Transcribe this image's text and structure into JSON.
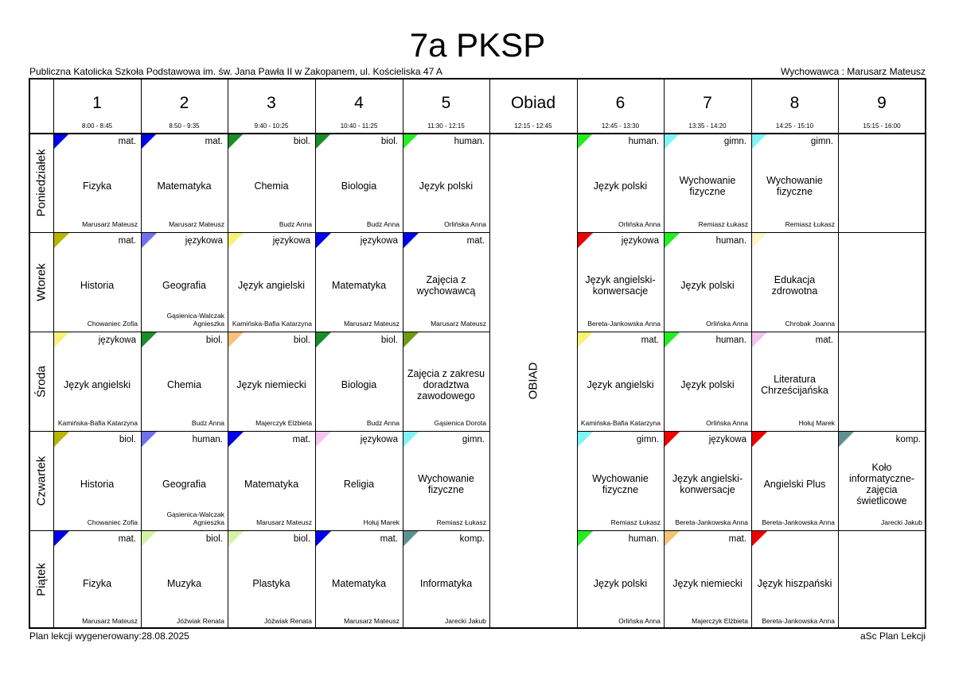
{
  "title": "7a PKSP",
  "school": "Publiczna Katolicka Szkoła Podstawowa im. św. Jana Pawła II w Zakopanem, ul. Kościeliska 47 A",
  "homeroom": "Wychowawca : Marusarz Mateusz",
  "footer_left": "Plan lekcji wygenerowany:28.08.2025",
  "footer_right": "aSc Plan Lekcji",
  "lunch_label": "OBIAD",
  "periods": [
    {
      "label": "1",
      "time": "8:00 - 8:45"
    },
    {
      "label": "2",
      "time": "8:50 - 9:35"
    },
    {
      "label": "3",
      "time": "9:40 - 10:25"
    },
    {
      "label": "4",
      "time": "10:40 - 11:25"
    },
    {
      "label": "5",
      "time": "11:30 - 12:15"
    },
    {
      "label": "Obiad",
      "time": "12:15 - 12:45"
    },
    {
      "label": "6",
      "time": "12:45 - 13:30"
    },
    {
      "label": "7",
      "time": "13:35 - 14:20"
    },
    {
      "label": "8",
      "time": "14:25 - 15:10"
    },
    {
      "label": "9",
      "time": "15:15 - 16:00"
    }
  ],
  "days": [
    {
      "name": "Poniedziałek",
      "lessons": [
        {
          "subject": "Fizyka",
          "group": "mat.",
          "teacher": "Marusarz Mateusz",
          "color": "#0000ee"
        },
        {
          "subject": "Matematyka",
          "group": "mat.",
          "teacher": "Marusarz Mateusz",
          "color": "#0000ee"
        },
        {
          "subject": "Chemia",
          "group": "biol.",
          "teacher": "Budz Anna",
          "color": "#1a8c2a"
        },
        {
          "subject": "Biologia",
          "group": "biol.",
          "teacher": "Budz Anna",
          "color": "#1a8c2a"
        },
        {
          "subject": "Język polski",
          "group": "human.",
          "teacher": "Orlińska Anna",
          "color": "#22ee22"
        },
        null,
        {
          "subject": "Język polski",
          "group": "human.",
          "teacher": "Orlińska Anna",
          "color": "#22ee22"
        },
        {
          "subject": "Wychowanie fizyczne",
          "group": "gimn.",
          "teacher": "Remiasz Łukasz",
          "color": "#7ff3f5"
        },
        {
          "subject": "Wychowanie fizyczne",
          "group": "gimn.",
          "teacher": "Remiasz Łukasz",
          "color": "#7ff3f5"
        },
        null
      ]
    },
    {
      "name": "Wtorek",
      "lessons": [
        {
          "subject": "Historia",
          "group": "mat.",
          "teacher": "Chowaniec Zofia",
          "color": "#b9b400"
        },
        {
          "subject": "Geografia",
          "group": "językowa",
          "teacher": "Gąsienica-Walczak Agnieszka",
          "color": "#7070ee"
        },
        {
          "subject": "Język angielski",
          "group": "językowa",
          "teacher": "Kamińska-Bafia Katarzyna",
          "color": "#f3f37a"
        },
        {
          "subject": "Matematyka",
          "group": "językowa",
          "teacher": "Marusarz Mateusz",
          "color": "#0000ee"
        },
        {
          "subject": "Zajęcia z wychowawcą",
          "group": "mat.",
          "teacher": "Marusarz Mateusz",
          "color": "#0000ee"
        },
        null,
        {
          "subject": "Język angielski-konwersacje",
          "group": "językowa",
          "teacher": "Bereta-Jankowska Anna",
          "color": "#ee0000"
        },
        {
          "subject": "Język polski",
          "group": "human.",
          "teacher": "Orlińska Anna",
          "color": "#22ee22"
        },
        {
          "subject": "Edukacja zdrowotna",
          "group": "",
          "teacher": "Chrobak Joanna",
          "color": "#fbf6c8"
        },
        null
      ]
    },
    {
      "name": "Środa",
      "lessons": [
        {
          "subject": "Język angielski",
          "group": "językowa",
          "teacher": "Kamińska-Bafia Katarzyna",
          "color": "#f3f37a"
        },
        {
          "subject": "Chemia",
          "group": "biol.",
          "teacher": "Budz Anna",
          "color": "#1a8c2a"
        },
        {
          "subject": "Język niemiecki",
          "group": "biol.",
          "teacher": "Majerczyk Elżbieta",
          "color": "#f6c278"
        },
        {
          "subject": "Biologia",
          "group": "biol.",
          "teacher": "Budz Anna",
          "color": "#1a8c2a"
        },
        {
          "subject": "Zajęcia z zakresu doradztwa zawodowego",
          "group": "",
          "teacher": "Gąsienica Dorota",
          "color": "#6e9a12"
        },
        null,
        {
          "subject": "Język angielski",
          "group": "mat.",
          "teacher": "Kamińska-Bafia Katarzyna",
          "color": "#f3f37a"
        },
        {
          "subject": "Język polski",
          "group": "human.",
          "teacher": "Orlińska Anna",
          "color": "#22ee22"
        },
        {
          "subject": "Literatura Chrześcijańska",
          "group": "mat.",
          "teacher": "Hołuj Marek",
          "color": "#f3c6f1"
        },
        null
      ]
    },
    {
      "name": "Czwartek",
      "lessons": [
        {
          "subject": "Historia",
          "group": "biol.",
          "teacher": "Chowaniec Zofia",
          "color": "#b9b400"
        },
        {
          "subject": "Geografia",
          "group": "human.",
          "teacher": "Gąsienica-Walczak Agnieszka",
          "color": "#7070ee"
        },
        {
          "subject": "Matematyka",
          "group": "mat.",
          "teacher": "Marusarz Mateusz",
          "color": "#0000ee"
        },
        {
          "subject": "Religia",
          "group": "językowa",
          "teacher": "Hołuj Marek",
          "color": "#f3c6f1"
        },
        {
          "subject": "Wychowanie fizyczne",
          "group": "gimn.",
          "teacher": "Remiasz Łukasz",
          "color": "#7ff3f5"
        },
        null,
        {
          "subject": "Wychowanie fizyczne",
          "group": "gimn.",
          "teacher": "Remiasz Łukasz",
          "color": "#7ff3f5"
        },
        {
          "subject": "Język angielski-konwersacje",
          "group": "językowa",
          "teacher": "Bereta-Jankowska Anna",
          "color": "#ee0000"
        },
        {
          "subject": "Angielski Plus",
          "group": "",
          "teacher": "Bereta-Jankowska Anna",
          "color": "#ee0000"
        },
        {
          "subject": "Koło informatyczne-zajęcia świetlicowe",
          "group": "komp.",
          "teacher": "Jarecki Jakub",
          "color": "#5f9090"
        }
      ]
    },
    {
      "name": "Piątek",
      "lessons": [
        {
          "subject": "Fizyka",
          "group": "mat.",
          "teacher": "Marusarz Mateusz",
          "color": "#0000ee"
        },
        {
          "subject": "Muzyka",
          "group": "biol.",
          "teacher": "Jóźwiak Renata",
          "color": "#d4f3a8"
        },
        {
          "subject": "Plastyka",
          "group": "biol.",
          "teacher": "Jóźwiak Renata",
          "color": "#d4f3a8"
        },
        {
          "subject": "Matematyka",
          "group": "mat.",
          "teacher": "Marusarz Mateusz",
          "color": "#0000ee"
        },
        {
          "subject": "Informatyka",
          "group": "komp.",
          "teacher": "Jarecki Jakub",
          "color": "#5f9090"
        },
        null,
        {
          "subject": "Język polski",
          "group": "human.",
          "teacher": "Orlińska Anna",
          "color": "#22ee22"
        },
        {
          "subject": "Język niemiecki",
          "group": "mat.",
          "teacher": "Majerczyk Elżbieta",
          "color": "#f6c278"
        },
        {
          "subject": "Język hiszpański",
          "group": "",
          "teacher": "Bereta-Jankowska Anna",
          "color": "#ee0000"
        },
        null
      ]
    }
  ]
}
